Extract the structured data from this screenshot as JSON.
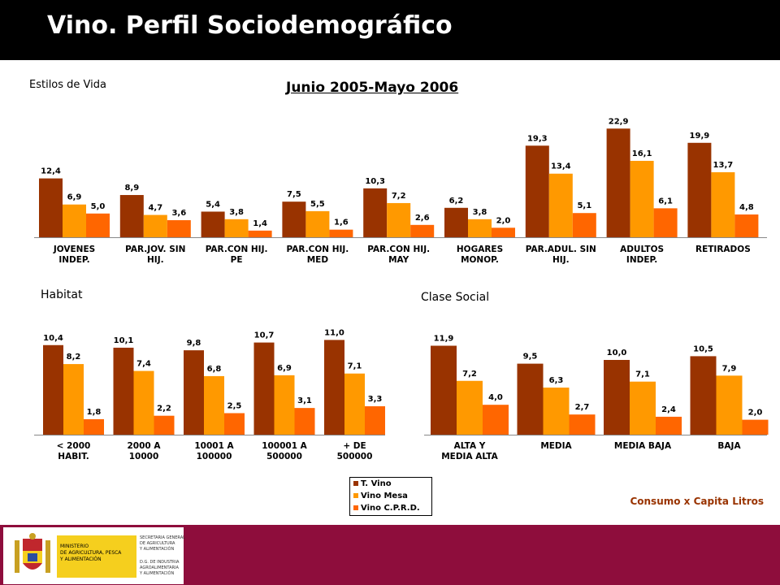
{
  "page": {
    "title": "Vino. Perfil Sociodemográfico"
  },
  "period_title": "Junio 2005-Mayo 2006",
  "units_note": "Consumo x Capita Litros",
  "legend": [
    "T. Vino",
    "Vino Mesa",
    "Vino C.P.R.D."
  ],
  "colors": {
    "t_vino": "#993300",
    "vino_mesa": "#ff9900",
    "vino_cprd": "#ff6600",
    "header": "#000000",
    "footer": "#8e0d3c"
  },
  "logo": {
    "ministry": [
      "MINISTERIO",
      "DE AGRICULTURA, PESCA",
      "Y ALIMENTACIÓN"
    ],
    "secretaria": [
      "SECRETARIA GENERAL",
      "DE AGRICULTURA",
      "Y ALIMENTACIÓN"
    ],
    "direccion": [
      "D.G. DE INDUSTRIA",
      "AGROALIMENTARIA",
      "Y ALIMENTACIÓN"
    ]
  },
  "chart_data": [
    {
      "type": "bar",
      "title": "Estilos de Vida",
      "categories": [
        [
          "JOVENES",
          "INDEP."
        ],
        [
          "PAR.JOV. SIN",
          "HIJ."
        ],
        [
          "PAR.CON HIJ.",
          "PE"
        ],
        [
          "PAR.CON HIJ.",
          "MED"
        ],
        [
          "PAR.CON HIJ.",
          "MAY"
        ],
        [
          "HOGARES",
          "MONOP."
        ],
        [
          "PAR.ADUL. SIN",
          "HIJ."
        ],
        [
          "ADULTOS",
          "INDEP."
        ],
        [
          "RETIRADOS"
        ]
      ],
      "series": [
        {
          "name": "T. Vino",
          "values": [
            12.4,
            8.9,
            5.4,
            7.5,
            10.3,
            6.2,
            19.3,
            22.9,
            19.9
          ],
          "labels": [
            "12,4",
            "8,9",
            "5,4",
            "7,5",
            "10,3",
            "6,2",
            "19,3",
            "22,9",
            "19,9"
          ]
        },
        {
          "name": "Vino Mesa",
          "values": [
            6.9,
            4.7,
            3.8,
            5.5,
            7.2,
            3.8,
            13.4,
            16.1,
            13.7
          ],
          "labels": [
            "6,9",
            "4,7",
            "3,8",
            "5,5",
            "7,2",
            "3,8",
            "13,4",
            "16,1",
            "13,7"
          ]
        },
        {
          "name": "Vino C.P.R.D.",
          "values": [
            5.0,
            3.6,
            1.4,
            1.6,
            2.6,
            2.0,
            5.1,
            6.1,
            4.8
          ],
          "labels": [
            "5,0",
            "3,6",
            "1,4",
            "1,6",
            "2,6",
            "2,0",
            "5,1",
            "6,1",
            "4,8"
          ]
        }
      ]
    },
    {
      "type": "bar",
      "title": "Habitat",
      "categories": [
        [
          "< 2000",
          "HABIT."
        ],
        [
          "2000 A",
          "10000"
        ],
        [
          "10001 A",
          "100000"
        ],
        [
          "100001 A",
          "500000"
        ],
        [
          "+ DE",
          "500000"
        ]
      ],
      "series": [
        {
          "name": "T. Vino",
          "values": [
            10.4,
            10.1,
            9.8,
            10.7,
            11.0
          ],
          "labels": [
            "10,4",
            "10,1",
            "9,8",
            "10,7",
            "11,0"
          ]
        },
        {
          "name": "Vino Mesa",
          "values": [
            8.2,
            7.4,
            6.8,
            6.9,
            7.1
          ],
          "labels": [
            "8,2",
            "7,4",
            "6,8",
            "6,9",
            "7,1"
          ]
        },
        {
          "name": "Vino C.P.R.D.",
          "values": [
            1.8,
            2.2,
            2.5,
            3.1,
            3.3
          ],
          "labels": [
            "1,8",
            "2,2",
            "2,5",
            "3,1",
            "3,3"
          ]
        }
      ]
    },
    {
      "type": "bar",
      "title": "Clase Social",
      "categories": [
        [
          "ALTA Y",
          "MEDIA ALTA"
        ],
        [
          "MEDIA"
        ],
        [
          "MEDIA BAJA"
        ],
        [
          "BAJA"
        ]
      ],
      "series": [
        {
          "name": "T. Vino",
          "values": [
            11.9,
            9.5,
            10.0,
            10.5
          ],
          "labels": [
            "11,9",
            "9,5",
            "10,0",
            "10,5"
          ]
        },
        {
          "name": "Vino Mesa",
          "values": [
            7.2,
            6.3,
            7.1,
            7.9
          ],
          "labels": [
            "7,2",
            "6,3",
            "7,1",
            "7,9"
          ]
        },
        {
          "name": "Vino C.P.R.D.",
          "values": [
            4.0,
            2.7,
            2.4,
            2.0
          ],
          "labels": [
            "4,0",
            "2,7",
            "2,4",
            "2,0"
          ]
        }
      ]
    }
  ]
}
